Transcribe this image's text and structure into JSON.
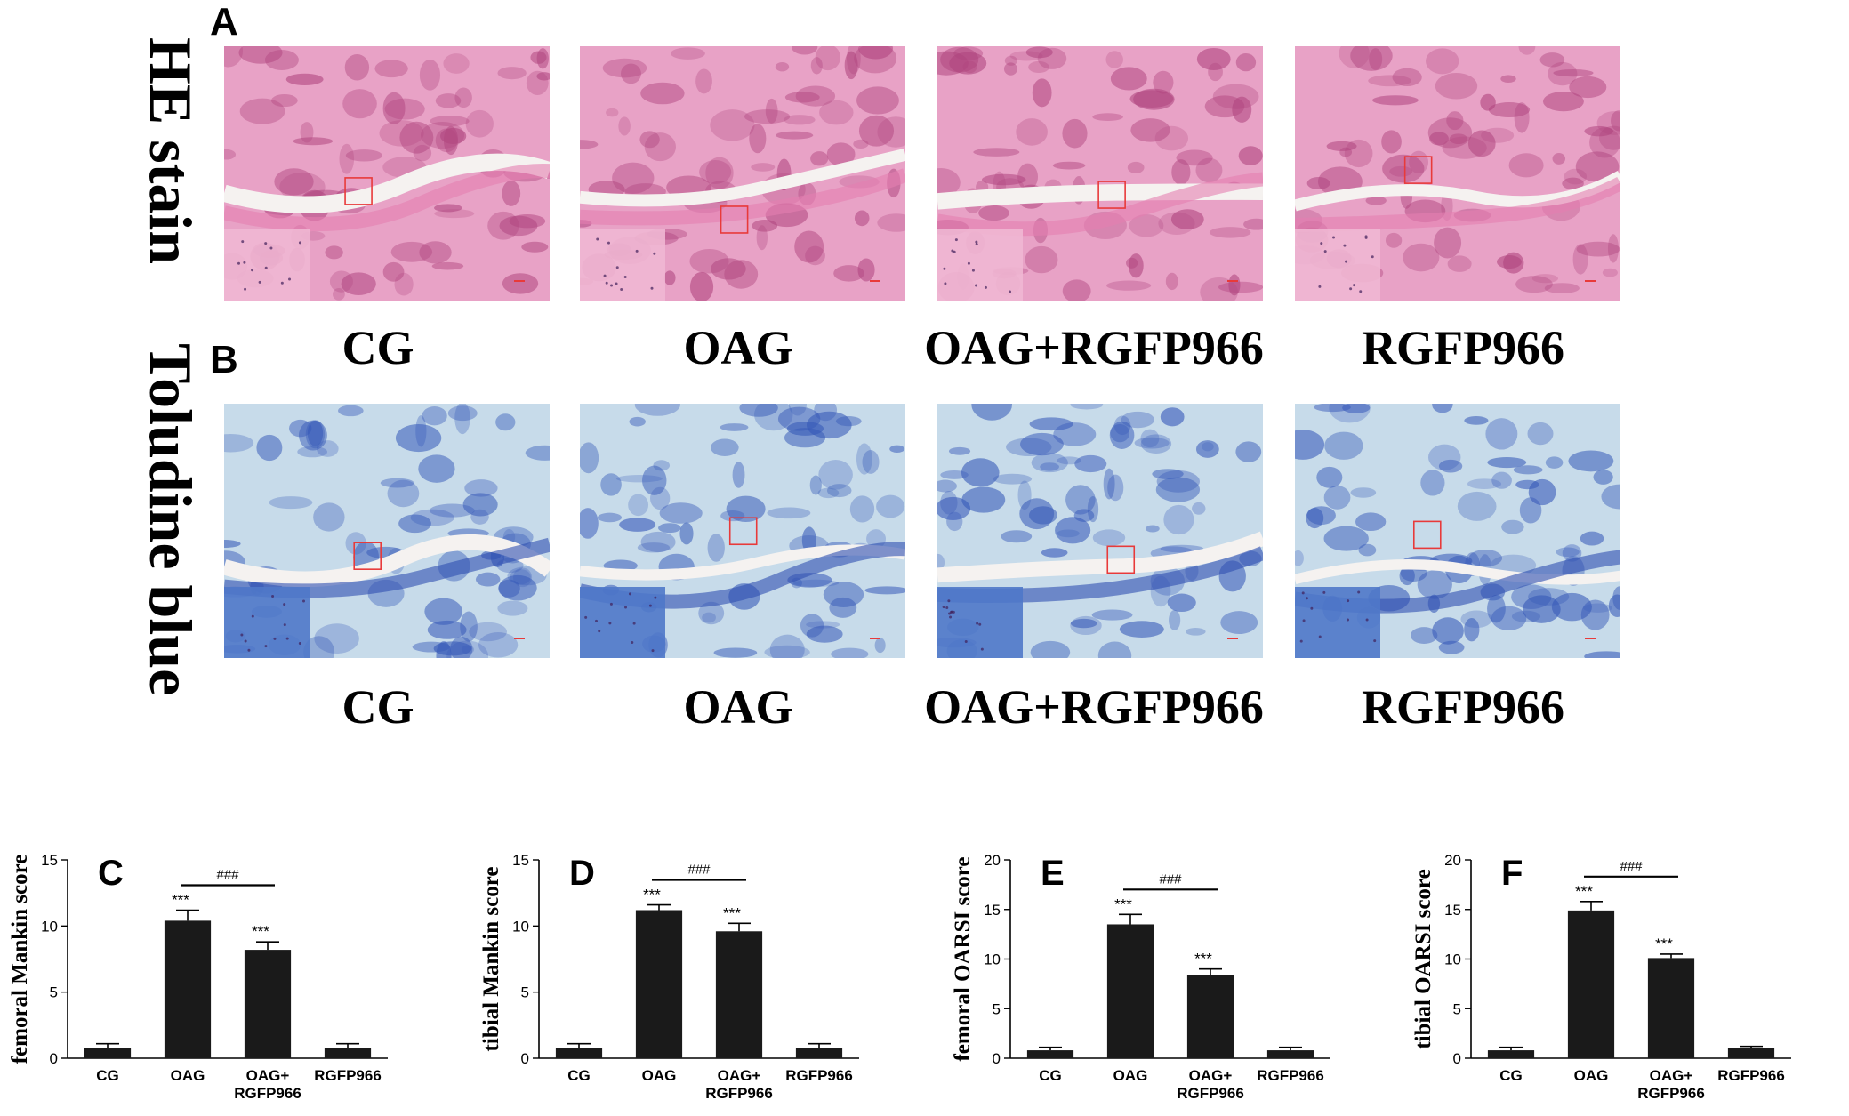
{
  "side_labels": {
    "he": "HE stain",
    "toluidine": "Toludine blue"
  },
  "panel_letters": {
    "a": "A",
    "b": "B"
  },
  "groups_row_a": [
    "CG",
    "OAG",
    "OAG+RGFP966",
    "RGFP966"
  ],
  "groups_row_b": [
    "CG",
    "OAG",
    "OAG+RGFP966",
    "RGFP966"
  ],
  "colors": {
    "he_bg": "#e8a2c6",
    "he_stain": "#b0457f",
    "tb_bg": "#c7dbea",
    "tb_stain": "#3558b8",
    "bar": "#1a1a1a",
    "box": "#e83a3a"
  },
  "chart_data": [
    {
      "type": "bar",
      "letter": "C",
      "ylabel": "femoral Mankin score",
      "ylim": [
        0,
        15
      ],
      "yticks": [
        0,
        5,
        10,
        15
      ],
      "categories": [
        "CG",
        "OAG",
        "OAG+ RGFP966",
        "RGFP966"
      ],
      "values": [
        0.8,
        10.4,
        8.2,
        0.8
      ],
      "errors": [
        0.3,
        0.8,
        0.6,
        0.3
      ],
      "stars": [
        "",
        "***",
        "***",
        ""
      ],
      "comparison": {
        "from": 1,
        "to": 2,
        "label": "###"
      }
    },
    {
      "type": "bar",
      "letter": "D",
      "ylabel": "tibial Mankin score",
      "ylim": [
        0,
        15
      ],
      "yticks": [
        0,
        5,
        10,
        15
      ],
      "categories": [
        "CG",
        "OAG",
        "OAG+ RGFP966",
        "RGFP966"
      ],
      "values": [
        0.8,
        11.2,
        9.6,
        0.8
      ],
      "errors": [
        0.3,
        0.4,
        0.6,
        0.3
      ],
      "stars": [
        "",
        "***",
        "***",
        ""
      ],
      "comparison": {
        "from": 1,
        "to": 2,
        "label": "###"
      }
    },
    {
      "type": "bar",
      "letter": "E",
      "ylabel": "femoral OARSI score",
      "ylim": [
        0,
        20
      ],
      "yticks": [
        0,
        5,
        10,
        15,
        20
      ],
      "categories": [
        "CG",
        "OAG",
        "OAG+ RGFP966",
        "RGFP966"
      ],
      "values": [
        0.8,
        13.5,
        8.4,
        0.8
      ],
      "errors": [
        0.3,
        1.0,
        0.6,
        0.3
      ],
      "stars": [
        "",
        "***",
        "***",
        ""
      ],
      "comparison": {
        "from": 1,
        "to": 2,
        "label": "###"
      }
    },
    {
      "type": "bar",
      "letter": "F",
      "ylabel": "tibial OARSI score",
      "ylim": [
        0,
        20
      ],
      "yticks": [
        0,
        5,
        10,
        15,
        20
      ],
      "categories": [
        "CG",
        "OAG",
        "OAG+ RGFP966",
        "RGFP966"
      ],
      "values": [
        0.8,
        14.9,
        10.1,
        1.0
      ],
      "errors": [
        0.3,
        0.9,
        0.4,
        0.2
      ],
      "stars": [
        "",
        "***",
        "***",
        ""
      ],
      "comparison": {
        "from": 1,
        "to": 2,
        "label": "###"
      }
    }
  ]
}
